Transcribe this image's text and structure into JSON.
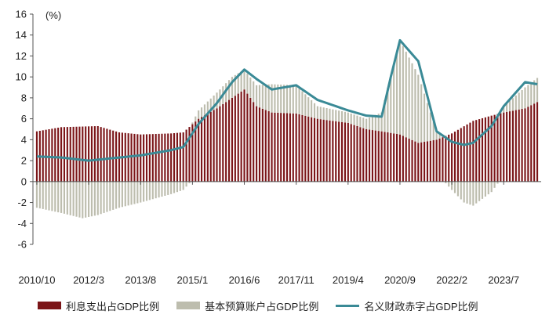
{
  "chart_data": {
    "type": "bar+line",
    "ylabel": "(%)",
    "ylim": [
      -6,
      16
    ],
    "yticks": [
      -6,
      -4,
      -2,
      0,
      2,
      4,
      6,
      8,
      10,
      12,
      14,
      16
    ],
    "xtick_labels": [
      "2010/10",
      "2012/3",
      "2013/8",
      "2015/1",
      "2016/6",
      "2017/11",
      "2019/4",
      "2020/9",
      "2022/2",
      "2023/7"
    ],
    "xtick_months": [
      "2010-10",
      "2012-03",
      "2013-08",
      "2015-01",
      "2016-06",
      "2017-11",
      "2019-04",
      "2020-09",
      "2022-02",
      "2023-07"
    ],
    "start_month": "2010-10",
    "end_month": "2024-06",
    "series": [
      {
        "name": "利息支出占GDP比例",
        "type": "bar",
        "color": "#7b1518",
        "knots": [
          [
            "2010-10",
            4.8
          ],
          [
            "2011-06",
            5.2
          ],
          [
            "2012-06",
            5.3
          ],
          [
            "2013-01",
            4.7
          ],
          [
            "2013-08",
            4.5
          ],
          [
            "2014-06",
            4.6
          ],
          [
            "2014-10",
            4.7
          ],
          [
            "2015-03",
            6.0
          ],
          [
            "2015-09",
            7.0
          ],
          [
            "2016-02",
            8.0
          ],
          [
            "2016-06",
            8.8
          ],
          [
            "2016-10",
            7.2
          ],
          [
            "2017-03",
            6.6
          ],
          [
            "2017-11",
            6.5
          ],
          [
            "2018-06",
            6.0
          ],
          [
            "2019-04",
            5.6
          ],
          [
            "2019-10",
            5.0
          ],
          [
            "2020-03",
            4.8
          ],
          [
            "2020-09",
            4.5
          ],
          [
            "2021-03",
            3.7
          ],
          [
            "2021-09",
            4.0
          ],
          [
            "2022-02",
            4.6
          ],
          [
            "2022-09",
            5.8
          ],
          [
            "2023-03",
            6.3
          ],
          [
            "2023-07",
            6.6
          ],
          [
            "2024-02",
            7.0
          ],
          [
            "2024-06",
            7.6
          ]
        ]
      },
      {
        "name": "基本预算账户占GDP比例",
        "type": "bar",
        "color": "#bdbdae",
        "knots": [
          [
            "2010-10",
            -2.5
          ],
          [
            "2011-06",
            -3.0
          ],
          [
            "2012-01",
            -3.5
          ],
          [
            "2012-06",
            -3.2
          ],
          [
            "2013-01",
            -2.5
          ],
          [
            "2013-08",
            -2.0
          ],
          [
            "2014-06",
            -1.2
          ],
          [
            "2014-10",
            -0.8
          ],
          [
            "2015-03",
            0.8
          ],
          [
            "2015-09",
            1.5
          ],
          [
            "2016-02",
            2.0
          ],
          [
            "2016-06",
            1.9
          ],
          [
            "2016-10",
            2.0
          ],
          [
            "2017-03",
            2.7
          ],
          [
            "2017-11",
            2.7
          ],
          [
            "2018-06",
            1.2
          ],
          [
            "2019-04",
            1.0
          ],
          [
            "2019-10",
            1.0
          ],
          [
            "2020-03",
            1.8
          ],
          [
            "2020-06",
            5.5
          ],
          [
            "2020-09",
            9.0
          ],
          [
            "2021-03",
            6.5
          ],
          [
            "2021-09",
            0.8
          ],
          [
            "2022-02",
            -0.8
          ],
          [
            "2022-06",
            -2.0
          ],
          [
            "2022-09",
            -2.3
          ],
          [
            "2023-03",
            -1.0
          ],
          [
            "2023-07",
            0.6
          ],
          [
            "2024-02",
            2.0
          ],
          [
            "2024-06",
            2.3
          ]
        ]
      },
      {
        "name": "名义财政赤字占GDP比例",
        "type": "line",
        "color": "#3a8a96",
        "knots": [
          [
            "2010-10",
            2.4
          ],
          [
            "2011-06",
            2.3
          ],
          [
            "2012-03",
            2.0
          ],
          [
            "2013-01",
            2.3
          ],
          [
            "2013-08",
            2.5
          ],
          [
            "2014-06",
            3.0
          ],
          [
            "2014-10",
            3.3
          ],
          [
            "2015-03",
            5.5
          ],
          [
            "2015-09",
            7.5
          ],
          [
            "2016-02",
            9.5
          ],
          [
            "2016-06",
            10.7
          ],
          [
            "2016-10",
            9.8
          ],
          [
            "2017-03",
            8.8
          ],
          [
            "2017-11",
            9.2
          ],
          [
            "2018-06",
            7.8
          ],
          [
            "2019-04",
            6.8
          ],
          [
            "2019-10",
            6.3
          ],
          [
            "2020-03",
            6.2
          ],
          [
            "2020-06",
            10.0
          ],
          [
            "2020-09",
            13.5
          ],
          [
            "2021-03",
            11.5
          ],
          [
            "2021-09",
            4.8
          ],
          [
            "2022-02",
            3.8
          ],
          [
            "2022-06",
            3.5
          ],
          [
            "2022-09",
            3.7
          ],
          [
            "2023-03",
            5.3
          ],
          [
            "2023-07",
            7.2
          ],
          [
            "2024-02",
            9.5
          ],
          [
            "2024-06",
            9.3
          ]
        ]
      }
    ]
  }
}
